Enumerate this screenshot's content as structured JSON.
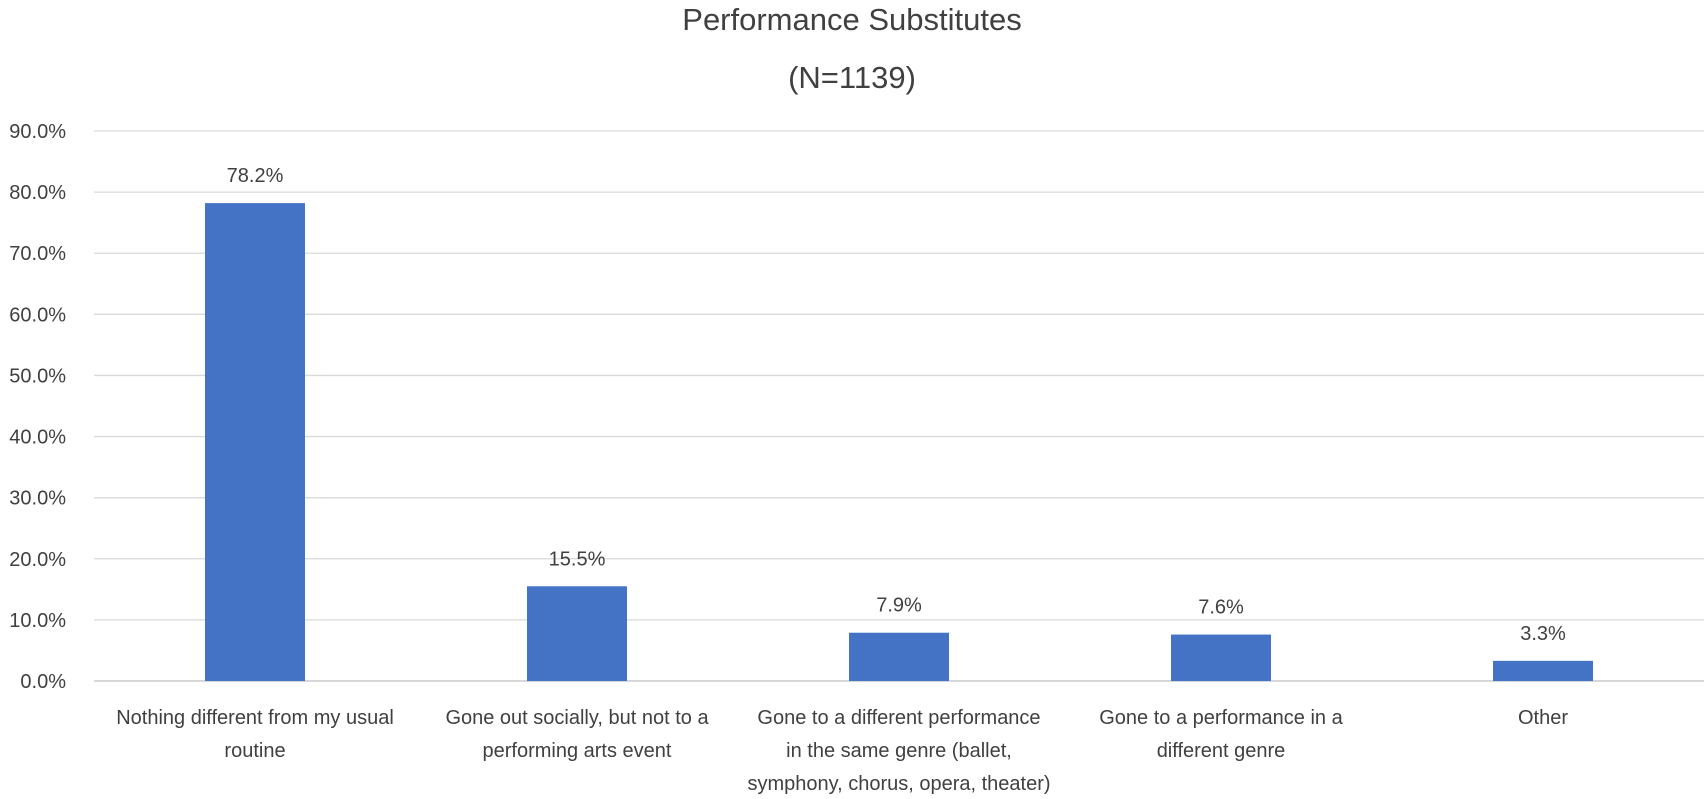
{
  "chart_data": {
    "type": "bar",
    "title": "Performance Substitutes",
    "subtitle": "(N=1139)",
    "categories": [
      [
        "Nothing different from my usual",
        "routine"
      ],
      [
        "Gone out socially, but not to a",
        "performing arts event"
      ],
      [
        "Gone to a different performance",
        "in the same genre (ballet,",
        "symphony, chorus, opera, theater)"
      ],
      [
        "Gone to a performance in a",
        "different genre"
      ],
      [
        "Other"
      ]
    ],
    "values": [
      78.2,
      15.5,
      7.9,
      7.6,
      3.3
    ],
    "data_labels": [
      "78.2%",
      "15.5%",
      "7.9%",
      "7.6%",
      "3.3%"
    ],
    "ylim": [
      0,
      90
    ],
    "y_ticks": [
      "0.0%",
      "10.0%",
      "20.0%",
      "30.0%",
      "40.0%",
      "50.0%",
      "60.0%",
      "70.0%",
      "80.0%",
      "90.0%"
    ],
    "y_tick_values": [
      0,
      10,
      20,
      30,
      40,
      50,
      60,
      70,
      80,
      90
    ],
    "grid": true,
    "legend": "none",
    "colors": {
      "bar": "#4472c4",
      "grid": "#d9d9d9",
      "text": "#404040"
    }
  }
}
